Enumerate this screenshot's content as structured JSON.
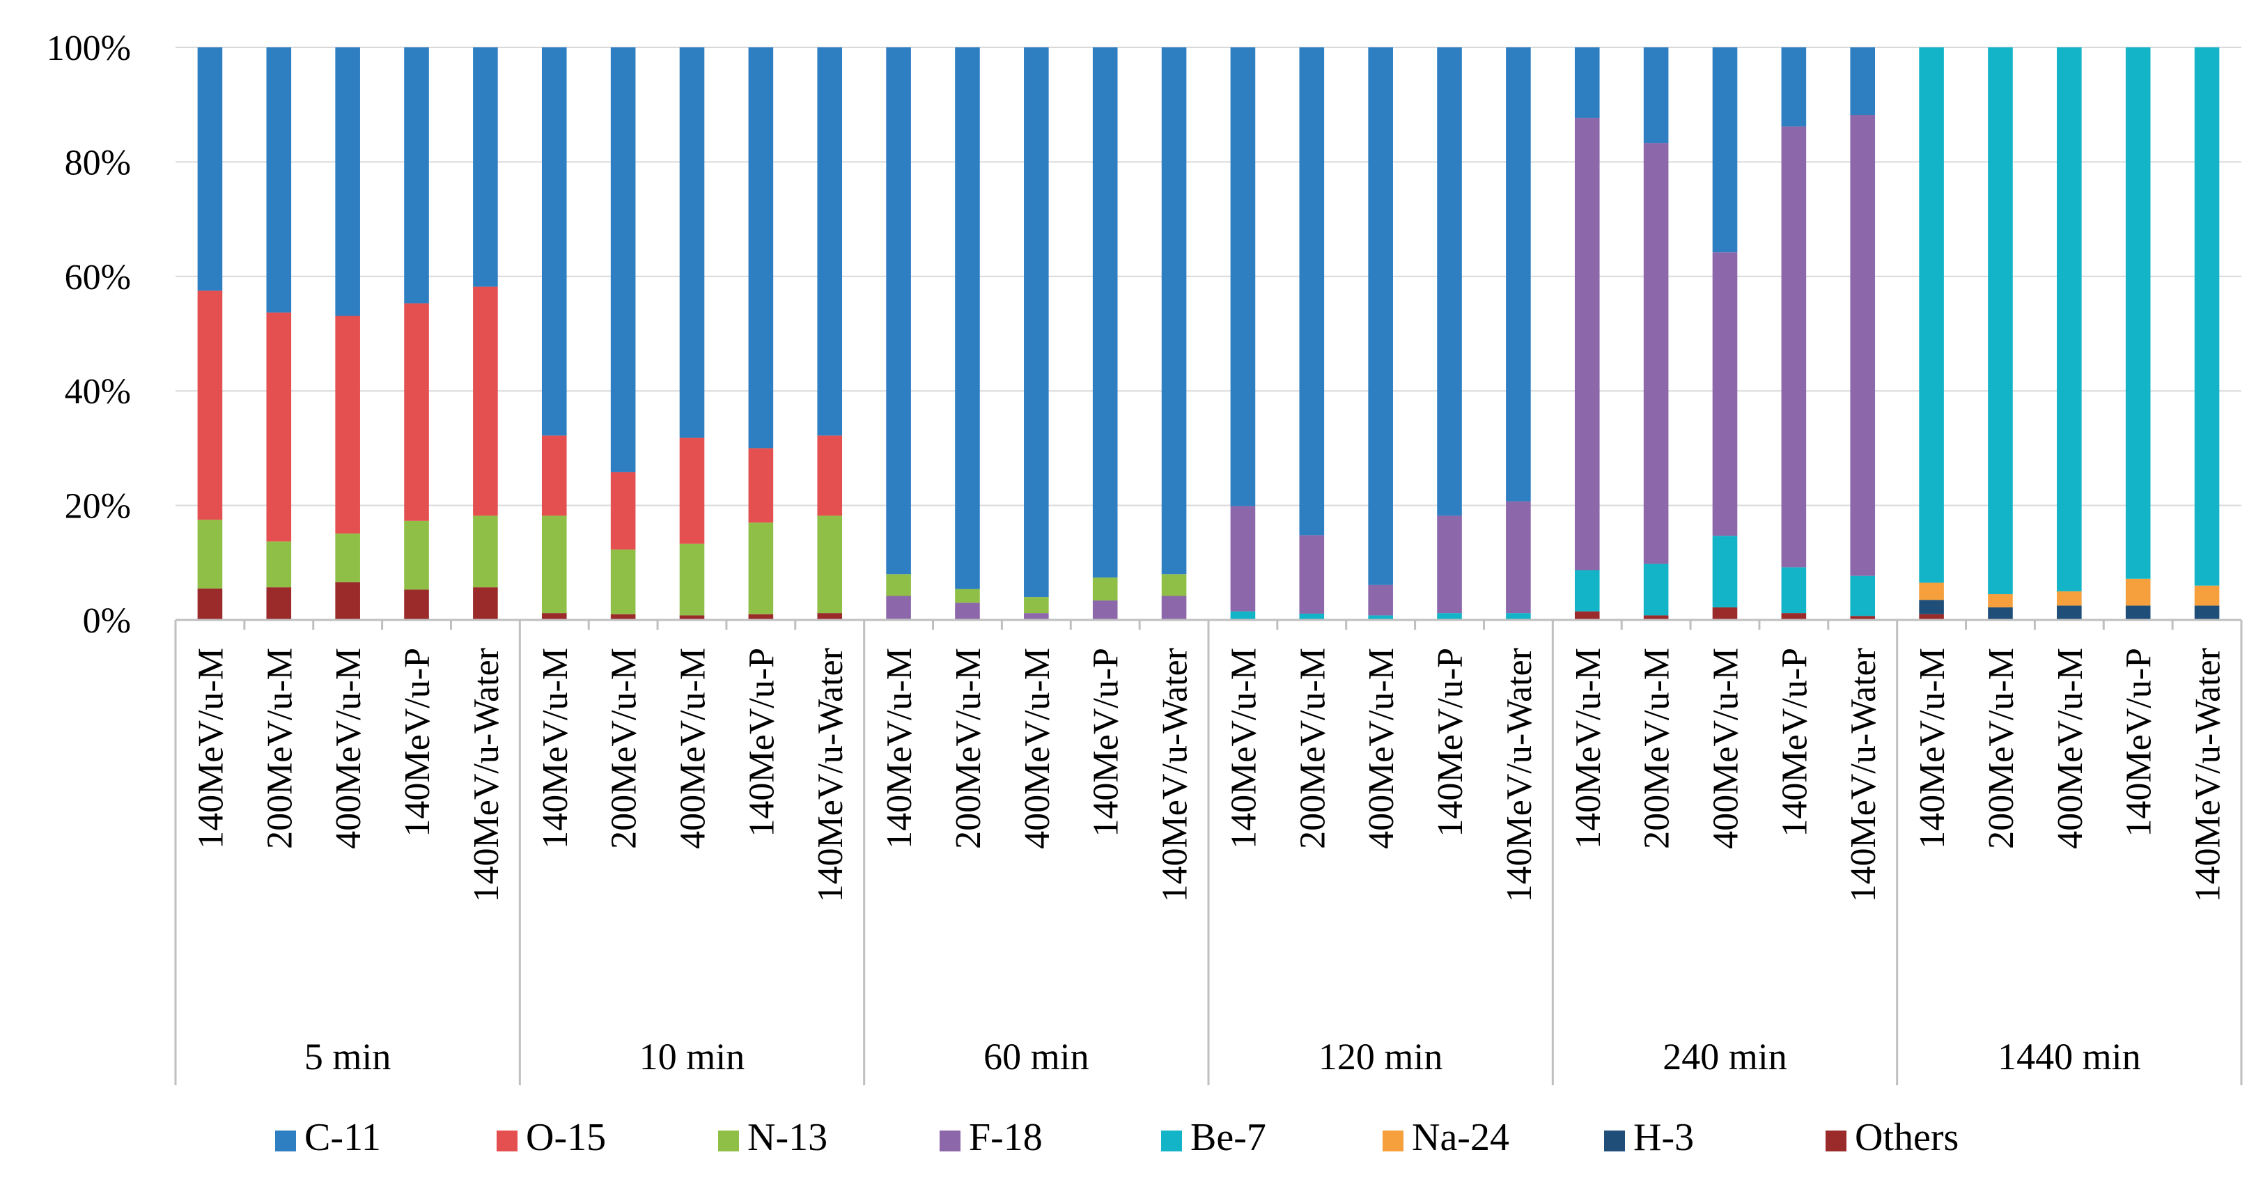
{
  "chart_data": {
    "type": "bar",
    "stacked": true,
    "normalized_percent": true,
    "title": "",
    "xlabel": "",
    "ylabel": "",
    "ylim": [
      0,
      100
    ],
    "y_ticks": [
      "0%",
      "20%",
      "40%",
      "60%",
      "80%",
      "100%"
    ],
    "grid": true,
    "legend_position": "bottom",
    "groups": [
      "5 min",
      "10 min",
      "60 min",
      "120 min",
      "240 min",
      "1440 min"
    ],
    "categories": [
      "140MeV/u-M",
      "200MeV/u-M",
      "400MeV/u-M",
      "140MeV/u-P",
      "140MeV/u-Water"
    ],
    "series": [
      {
        "name": "C-11",
        "color": "#2e7ec2",
        "values": [
          [
            42.5,
            46.3,
            46.9,
            44.7,
            41.8
          ],
          [
            67.8,
            74.2,
            68.2,
            70.0,
            67.8
          ],
          [
            92.0,
            94.6,
            96.0,
            92.6,
            92.0
          ],
          [
            80.1,
            85.2,
            93.9,
            81.8,
            79.3
          ],
          [
            12.3,
            16.7,
            35.8,
            13.8,
            11.8
          ],
          [
            0.0,
            0.0,
            0.0,
            0.0,
            0.0
          ]
        ]
      },
      {
        "name": "O-15",
        "color": "#e3504f",
        "values": [
          [
            40.0,
            40.0,
            38.0,
            38.0,
            40.0
          ],
          [
            14.0,
            13.5,
            18.5,
            13.0,
            14.0
          ],
          [
            0.0,
            0.0,
            0.0,
            0.0,
            0.0
          ],
          [
            0.0,
            0.0,
            0.0,
            0.0,
            0.0
          ],
          [
            0.0,
            0.0,
            0.0,
            0.0,
            0.0
          ],
          [
            0.0,
            0.0,
            0.0,
            0.0,
            0.0
          ]
        ]
      },
      {
        "name": "N-13",
        "color": "#8fbf47",
        "values": [
          [
            12.0,
            8.0,
            8.5,
            12.0,
            12.5
          ],
          [
            17.0,
            11.3,
            12.5,
            16.0,
            17.0
          ],
          [
            3.8,
            2.4,
            2.8,
            4.0,
            3.8
          ],
          [
            0.0,
            0.0,
            0.0,
            0.0,
            0.0
          ],
          [
            0.0,
            0.0,
            0.0,
            0.0,
            0.0
          ],
          [
            0.0,
            0.0,
            0.0,
            0.0,
            0.0
          ]
        ]
      },
      {
        "name": "F-18",
        "color": "#8c67aa",
        "values": [
          [
            0.0,
            0.0,
            0.0,
            0.0,
            0.0
          ],
          [
            0.0,
            0.0,
            0.0,
            0.0,
            0.0
          ],
          [
            4.0,
            3.0,
            1.2,
            3.4,
            4.2
          ],
          [
            18.4,
            13.7,
            5.3,
            17.0,
            19.5
          ],
          [
            79.0,
            73.5,
            49.5,
            77.0,
            80.5
          ],
          [
            0.0,
            0.0,
            0.0,
            0.0,
            0.0
          ]
        ]
      },
      {
        "name": "Be-7",
        "color": "#14b4c8",
        "values": [
          [
            0.0,
            0.0,
            0.0,
            0.0,
            0.0
          ],
          [
            0.0,
            0.0,
            0.0,
            0.0,
            0.0
          ],
          [
            0.2,
            0.0,
            0.0,
            0.0,
            0.0
          ],
          [
            1.5,
            1.1,
            0.8,
            1.2,
            1.2
          ],
          [
            7.2,
            9.0,
            12.5,
            8.0,
            7.0
          ],
          [
            93.5,
            95.5,
            95.0,
            92.8,
            94.0
          ]
        ]
      },
      {
        "name": "Na-24",
        "color": "#f5a03c",
        "values": [
          [
            0.0,
            0.0,
            0.0,
            0.0,
            0.0
          ],
          [
            0.0,
            0.0,
            0.0,
            0.0,
            0.0
          ],
          [
            0.0,
            0.0,
            0.0,
            0.0,
            0.0
          ],
          [
            0.0,
            0.0,
            0.0,
            0.0,
            0.0
          ],
          [
            0.0,
            0.0,
            0.0,
            0.0,
            0.0
          ],
          [
            3.0,
            2.3,
            2.5,
            4.7,
            3.5
          ]
        ]
      },
      {
        "name": "H-3",
        "color": "#1f4e79",
        "values": [
          [
            0.0,
            0.0,
            0.0,
            0.0,
            0.0
          ],
          [
            0.0,
            0.0,
            0.0,
            0.0,
            0.0
          ],
          [
            0.0,
            0.0,
            0.0,
            0.0,
            0.0
          ],
          [
            0.0,
            0.0,
            0.0,
            0.0,
            0.0
          ],
          [
            0.0,
            0.0,
            0.0,
            0.0,
            0.0
          ],
          [
            2.5,
            2.2,
            2.5,
            2.5,
            2.5
          ]
        ]
      },
      {
        "name": "Others",
        "color": "#9b2a2a",
        "values": [
          [
            5.5,
            5.7,
            6.6,
            5.3,
            5.7
          ],
          [
            1.2,
            1.0,
            0.8,
            1.0,
            1.2
          ],
          [
            0.0,
            0.0,
            0.0,
            0.0,
            0.0
          ],
          [
            0.0,
            0.0,
            0.0,
            0.0,
            0.0
          ],
          [
            1.5,
            0.8,
            2.2,
            1.2,
            0.7
          ],
          [
            1.0,
            0.0,
            0.0,
            0.0,
            0.0
          ]
        ]
      }
    ]
  }
}
